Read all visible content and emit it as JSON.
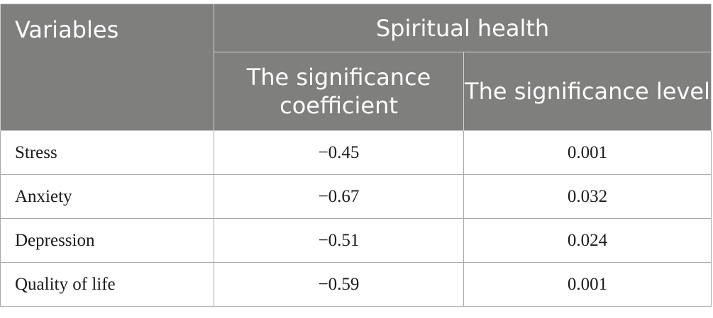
{
  "header": {
    "variables_label": "Variables",
    "group_label": "Spiritual health",
    "col_coefficient": "The significance coefficient",
    "col_level": "The significance level"
  },
  "rows": [
    {
      "variable": "Stress",
      "coefficient": "−0.45",
      "level": "0.001"
    },
    {
      "variable": "Anxiety",
      "coefficient": "−0.67",
      "level": "0.032"
    },
    {
      "variable": "Depression",
      "coefficient": "−0.51",
      "level": "0.024"
    },
    {
      "variable": "Quality of life",
      "coefficient": "−0.59",
      "level": "0.001"
    }
  ]
}
